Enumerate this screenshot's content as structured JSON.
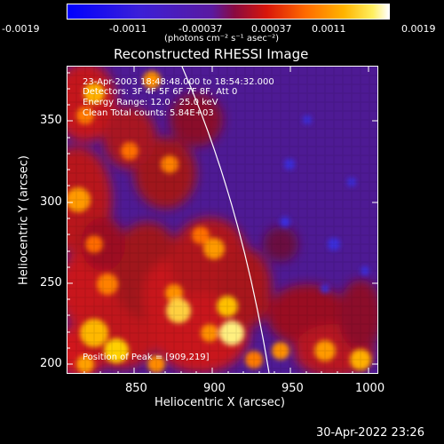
{
  "colorbar": {
    "ticks": [
      "-0.0019",
      "-0.0011",
      "-0.00037",
      "0.00037",
      "0.0011",
      "0.0019"
    ],
    "units_label": "(photons cm⁻² s⁻¹ asec⁻²)"
  },
  "title": "Reconstructed RHESSI Image",
  "info": {
    "time_range": "23-Apr-2003 18:48:48.000 to 18:54:32.000",
    "detectors": "Detectors: 3F 4F 5F 6F 7F 8F, Att 0",
    "energy_range": "Energy Range: 12.0 - 25.0 keV",
    "clean_counts": "Clean    Total counts: 5.84E+03"
  },
  "peak_label": "Position of Peak = [909,219]",
  "axes": {
    "xlabel": "Heliocentric X (arcsec)",
    "ylabel": "Heliocentric Y (arcsec)",
    "xticks": [
      "850",
      "900",
      "950",
      "1000"
    ],
    "yticks": [
      "200",
      "250",
      "300",
      "350"
    ]
  },
  "footer_timestamp": "30-Apr-2022 23:26",
  "colors": {
    "background": "#000000",
    "frame": "#ffffff",
    "limb_line": "#ffffff"
  }
}
